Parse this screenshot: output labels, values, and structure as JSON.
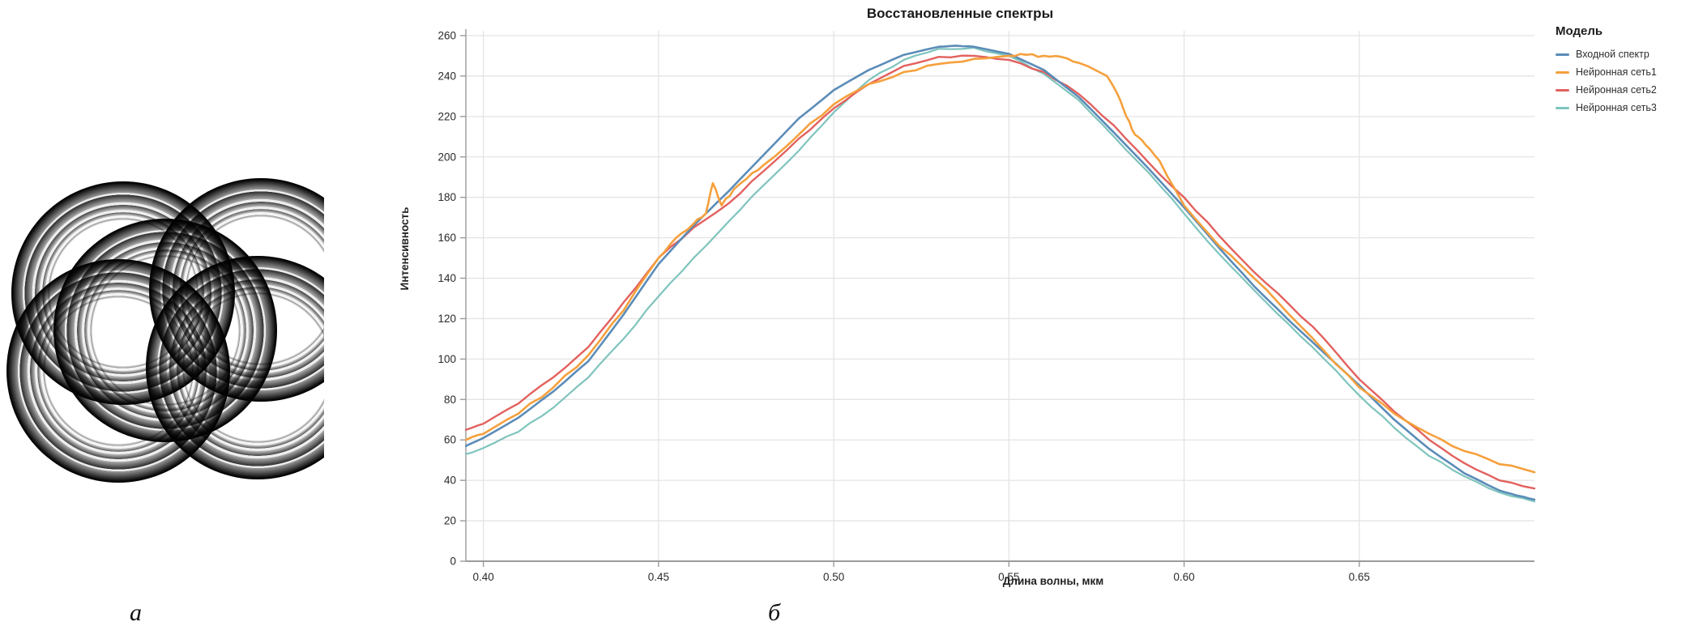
{
  "figure": {
    "caption_a": "а",
    "caption_b": "б"
  },
  "chart_data": {
    "type": "line",
    "title": "Восстановленные спектры",
    "xlabel": "Длина волны, мкм",
    "ylabel": "Интенсивность",
    "xlim": [
      0.395,
      0.7
    ],
    "ylim": [
      0,
      260
    ],
    "grid": true,
    "legend_title": "Модель",
    "legend_position": "right",
    "xtick_labels": [
      "0.40",
      "0.45",
      "0.50",
      "0.55",
      "0.60",
      "0.65"
    ],
    "xtick_values": [
      0.4,
      0.45,
      0.5,
      0.55,
      0.6,
      0.65
    ],
    "ytick_values": [
      0,
      20,
      40,
      60,
      80,
      100,
      120,
      140,
      160,
      180,
      200,
      220,
      240,
      260
    ],
    "series": [
      {
        "name": "Входной спектр",
        "color": "#5b8cb8",
        "width": 2.6,
        "noise": 0.2,
        "x": [
          0.395,
          0.4,
          0.41,
          0.42,
          0.43,
          0.44,
          0.45,
          0.46,
          0.47,
          0.48,
          0.49,
          0.5,
          0.51,
          0.52,
          0.53,
          0.535,
          0.54,
          0.55,
          0.56,
          0.57,
          0.58,
          0.59,
          0.6,
          0.61,
          0.62,
          0.63,
          0.64,
          0.65,
          0.66,
          0.67,
          0.68,
          0.69,
          0.695,
          0.7
        ],
        "y": [
          57,
          61,
          71,
          84,
          99,
          122,
          147,
          166,
          183,
          201,
          219,
          233,
          243,
          250.5,
          254.5,
          255,
          254.5,
          251,
          243,
          229.5,
          212,
          194,
          175,
          155,
          136,
          119,
          103,
          87,
          70,
          55.5,
          43.5,
          35,
          32.5,
          30.5
        ]
      },
      {
        "name": "Нейронная сеть1",
        "color": "#f5a03d",
        "width": 2.6,
        "noise": 1.4,
        "x": [
          0.395,
          0.4,
          0.41,
          0.42,
          0.43,
          0.44,
          0.45,
          0.455,
          0.46,
          0.4635,
          0.4655,
          0.468,
          0.4715,
          0.475,
          0.48,
          0.485,
          0.49,
          0.5,
          0.51,
          0.52,
          0.53,
          0.54,
          0.55,
          0.555,
          0.56,
          0.565,
          0.57,
          0.578,
          0.581,
          0.5835,
          0.586,
          0.589,
          0.593,
          0.6,
          0.61,
          0.62,
          0.63,
          0.64,
          0.65,
          0.66,
          0.67,
          0.68,
          0.69,
          0.7
        ],
        "y": [
          60,
          63,
          73,
          86,
          102,
          124,
          150,
          160,
          167,
          172,
          187,
          176,
          184,
          189,
          196,
          203,
          211,
          226,
          236,
          242,
          246,
          248.5,
          250,
          250.5,
          250,
          249.5,
          246.5,
          240,
          231,
          220,
          211,
          206,
          198,
          176,
          156,
          140,
          122,
          104,
          86,
          73,
          63,
          54.5,
          48,
          44
        ]
      },
      {
        "name": "Нейронная сеть2",
        "color": "#e2615e",
        "width": 2.4,
        "noise": 1.0,
        "x": [
          0.395,
          0.4,
          0.41,
          0.42,
          0.43,
          0.44,
          0.45,
          0.46,
          0.47,
          0.48,
          0.49,
          0.5,
          0.51,
          0.52,
          0.53,
          0.54,
          0.55,
          0.56,
          0.57,
          0.58,
          0.59,
          0.6,
          0.61,
          0.62,
          0.63,
          0.64,
          0.65,
          0.66,
          0.67,
          0.68,
          0.69,
          0.7
        ],
        "y": [
          65,
          68,
          78,
          91,
          106,
          128,
          150,
          165,
          177,
          193,
          209,
          224,
          236,
          245,
          249.5,
          250,
          248,
          242,
          231,
          215.5,
          197,
          180,
          161,
          143,
          127,
          110,
          90,
          74,
          60,
          48.5,
          40,
          36
        ]
      },
      {
        "name": "Нейронная сеть3",
        "color": "#7fc4bd",
        "width": 2.2,
        "noise": 0.9,
        "x": [
          0.395,
          0.4,
          0.41,
          0.42,
          0.43,
          0.44,
          0.45,
          0.46,
          0.47,
          0.48,
          0.49,
          0.5,
          0.51,
          0.52,
          0.53,
          0.54,
          0.55,
          0.56,
          0.57,
          0.58,
          0.59,
          0.6,
          0.61,
          0.62,
          0.63,
          0.64,
          0.65,
          0.66,
          0.67,
          0.68,
          0.69,
          0.7
        ],
        "y": [
          53,
          56,
          64,
          76,
          91,
          110,
          131,
          150,
          168,
          186,
          203,
          222,
          238,
          248,
          253.5,
          254,
          250,
          241,
          228,
          210,
          192,
          172,
          152,
          134,
          117,
          100,
          82,
          66,
          52,
          42,
          34,
          29.5
        ]
      }
    ]
  }
}
